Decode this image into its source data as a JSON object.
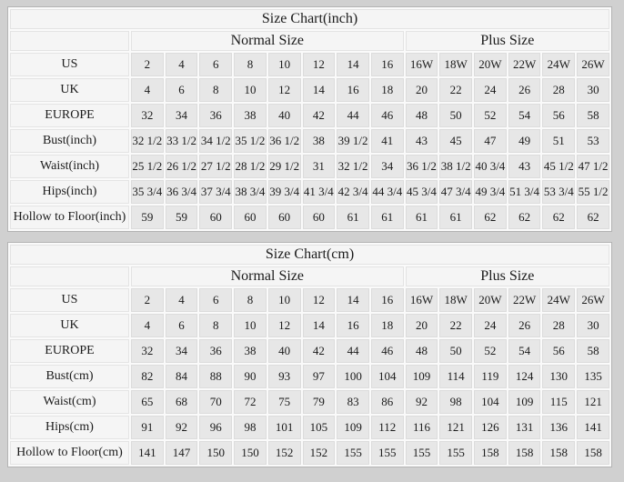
{
  "colors": {
    "page_background": "#d0d0d0",
    "table_background": "#fafafa",
    "header_cell_background": "#f5f5f5",
    "data_cell_background": "#e7e7e7",
    "table_border": "#b3b3b3",
    "text": "#1b1b1b"
  },
  "chart_data": [
    {
      "type": "table",
      "title": "Size Chart(inch)",
      "column_groups": [
        {
          "label": "Normal Size",
          "span": 8
        },
        {
          "label": "Plus Size",
          "span": 6
        }
      ],
      "rows": [
        {
          "label": "US",
          "values": [
            "2",
            "4",
            "6",
            "8",
            "10",
            "12",
            "14",
            "16",
            "16W",
            "18W",
            "20W",
            "22W",
            "24W",
            "26W"
          ]
        },
        {
          "label": "UK",
          "values": [
            "4",
            "6",
            "8",
            "10",
            "12",
            "14",
            "16",
            "18",
            "20",
            "22",
            "24",
            "26",
            "28",
            "30"
          ]
        },
        {
          "label": "EUROPE",
          "values": [
            "32",
            "34",
            "36",
            "38",
            "40",
            "42",
            "44",
            "46",
            "48",
            "50",
            "52",
            "54",
            "56",
            "58"
          ]
        },
        {
          "label": "Bust(inch)",
          "values": [
            "32 1/2",
            "33 1/2",
            "34 1/2",
            "35 1/2",
            "36 1/2",
            "38",
            "39 1/2",
            "41",
            "43",
            "45",
            "47",
            "49",
            "51",
            "53"
          ]
        },
        {
          "label": "Waist(inch)",
          "values": [
            "25 1/2",
            "26 1/2",
            "27 1/2",
            "28 1/2",
            "29 1/2",
            "31",
            "32 1/2",
            "34",
            "36 1/2",
            "38 1/2",
            "40 3/4",
            "43",
            "45 1/2",
            "47 1/2"
          ]
        },
        {
          "label": "Hips(inch)",
          "values": [
            "35 3/4",
            "36 3/4",
            "37 3/4",
            "38 3/4",
            "39 3/4",
            "41 3/4",
            "42 3/4",
            "44 3/4",
            "45 3/4",
            "47 3/4",
            "49 3/4",
            "51 3/4",
            "53 3/4",
            "55 1/2"
          ]
        },
        {
          "label": "Hollow to Floor(inch)",
          "values": [
            "59",
            "59",
            "60",
            "60",
            "60",
            "60",
            "61",
            "61",
            "61",
            "61",
            "62",
            "62",
            "62",
            "62"
          ]
        }
      ]
    },
    {
      "type": "table",
      "title": "Size Chart(cm)",
      "column_groups": [
        {
          "label": "Normal Size",
          "span": 8
        },
        {
          "label": "Plus Size",
          "span": 6
        }
      ],
      "rows": [
        {
          "label": "US",
          "values": [
            "2",
            "4",
            "6",
            "8",
            "10",
            "12",
            "14",
            "16",
            "16W",
            "18W",
            "20W",
            "22W",
            "24W",
            "26W"
          ]
        },
        {
          "label": "UK",
          "values": [
            "4",
            "6",
            "8",
            "10",
            "12",
            "14",
            "16",
            "18",
            "20",
            "22",
            "24",
            "26",
            "28",
            "30"
          ]
        },
        {
          "label": "EUROPE",
          "values": [
            "32",
            "34",
            "36",
            "38",
            "40",
            "42",
            "44",
            "46",
            "48",
            "50",
            "52",
            "54",
            "56",
            "58"
          ]
        },
        {
          "label": "Bust(cm)",
          "values": [
            "82",
            "84",
            "88",
            "90",
            "93",
            "97",
            "100",
            "104",
            "109",
            "114",
            "119",
            "124",
            "130",
            "135"
          ]
        },
        {
          "label": "Waist(cm)",
          "values": [
            "65",
            "68",
            "70",
            "72",
            "75",
            "79",
            "83",
            "86",
            "92",
            "98",
            "104",
            "109",
            "115",
            "121"
          ]
        },
        {
          "label": "Hips(cm)",
          "values": [
            "91",
            "92",
            "96",
            "98",
            "101",
            "105",
            "109",
            "112",
            "116",
            "121",
            "126",
            "131",
            "136",
            "141"
          ]
        },
        {
          "label": "Hollow to Floor(cm)",
          "values": [
            "141",
            "147",
            "150",
            "150",
            "152",
            "152",
            "155",
            "155",
            "155",
            "155",
            "158",
            "158",
            "158",
            "158"
          ]
        }
      ]
    }
  ]
}
